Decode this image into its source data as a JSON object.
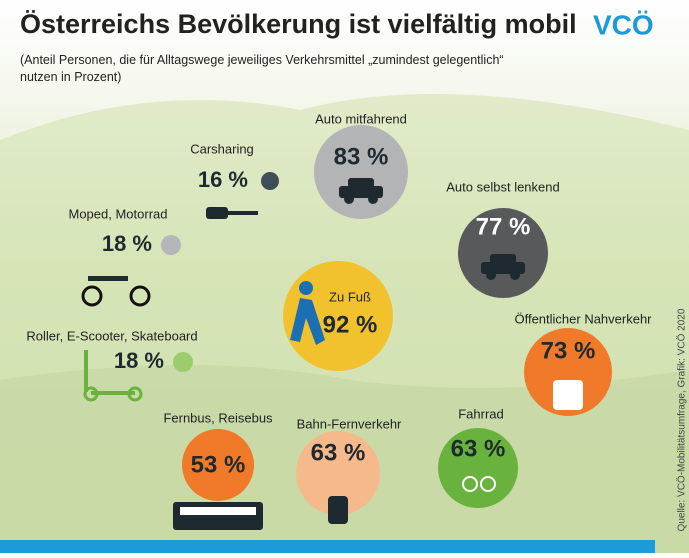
{
  "chart_data": {
    "type": "bubble",
    "title": "Österreichs Bevölkerung ist vielfältig mobil",
    "subtitle": "(Anteil Personen, die für Alltagswege jeweiliges Verkehrsmittel „zumindest gelegentlich“ nutzen in Prozent)",
    "logo": "VCÖ",
    "source": "Quelle: VCÖ-Mobilitätsumfrage, Grafik: VCÖ 2020",
    "categories": [
      "Carsharing",
      "Moped, Motorrad",
      "Roller, E-Scooter, Skateboard",
      "Auto mitfahrend",
      "Auto selbst lenkend",
      "Zu Fuß",
      "Öffentlicher Nahverkehr",
      "Fernbus, Reisebus",
      "Bahn-Fernverkehr",
      "Fahrrad"
    ],
    "values": [
      16,
      18,
      18,
      83,
      77,
      92,
      73,
      53,
      63,
      63
    ],
    "value_labels": [
      "16 %",
      "18 %",
      "18 %",
      "83 %",
      "77 %",
      "92 %",
      "73 %",
      "53 %",
      "63 %",
      "63 %"
    ],
    "colors": [
      "#3f4f58",
      "#b4b6ba",
      "#9ccc6c",
      "#b3b4b6",
      "#58595b",
      "#f2c12e",
      "#f07a2a",
      "#f07a2a",
      "#f6b98c",
      "#6ab23e"
    ]
  }
}
